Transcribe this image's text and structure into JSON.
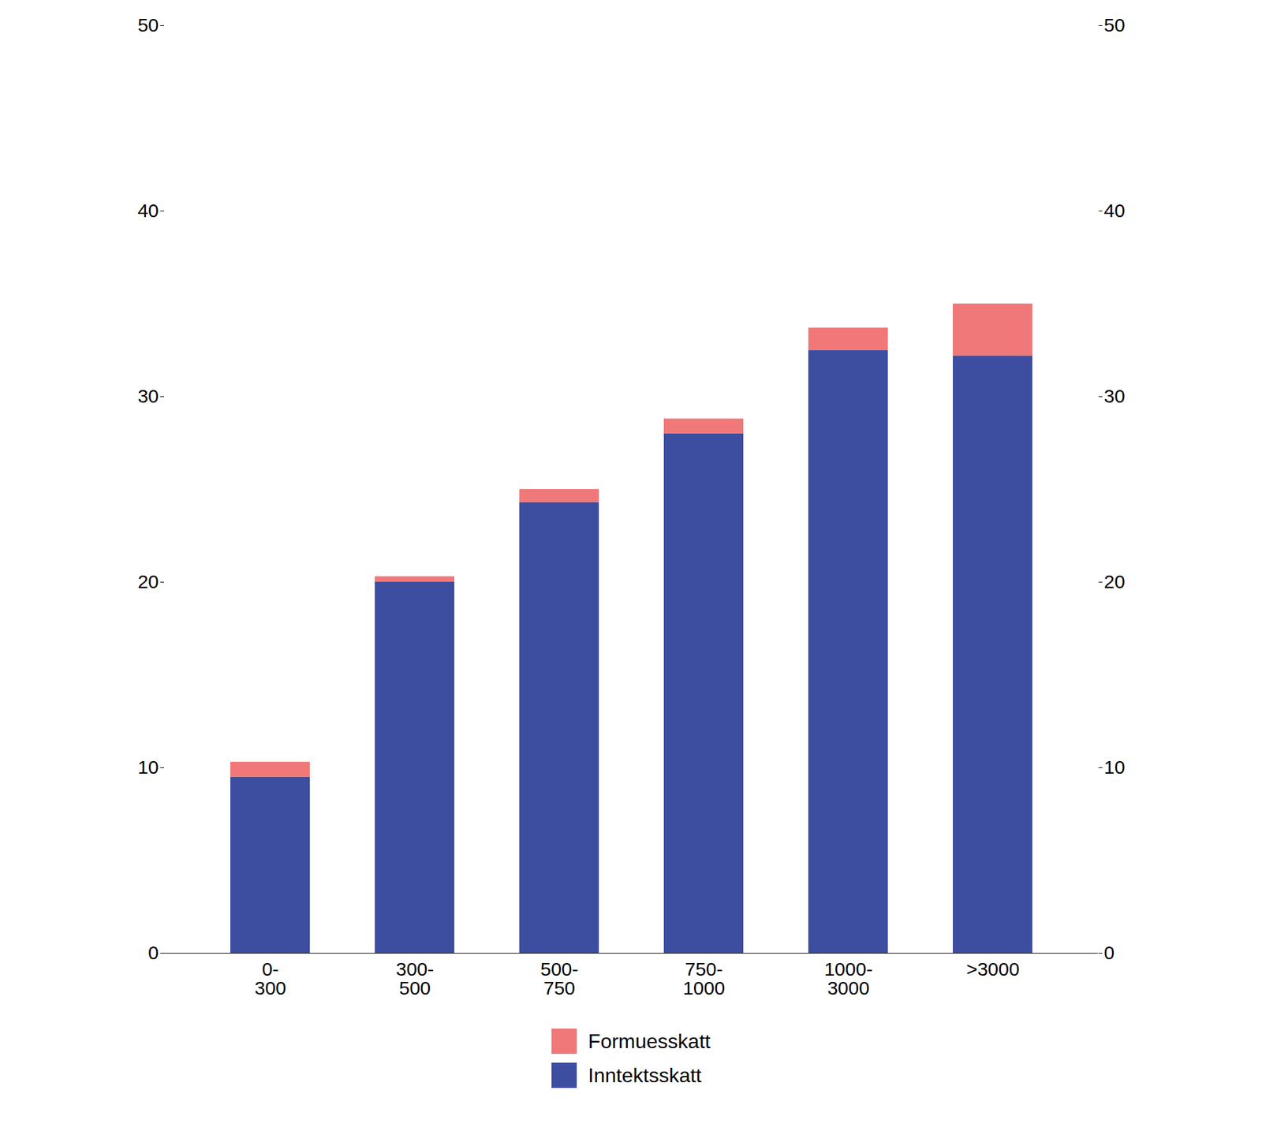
{
  "chart_data": {
    "type": "bar",
    "stacked": true,
    "categories": [
      "0-\n300",
      "300-\n500",
      "500-\n750",
      "750-\n1000",
      "1000-\n3000",
      ">3000"
    ],
    "series": [
      {
        "name": "Inntektsskatt",
        "color": "#3d4da0",
        "values": [
          9.5,
          20.0,
          24.3,
          28.0,
          32.5,
          32.2
        ]
      },
      {
        "name": "Formuesskatt",
        "color": "#f07878",
        "values": [
          0.8,
          0.3,
          0.7,
          0.8,
          1.2,
          2.8
        ]
      }
    ],
    "ylim": [
      0,
      50
    ],
    "yticks": [
      0,
      10,
      20,
      30,
      40,
      50
    ],
    "grid": false,
    "legend": "bottom"
  }
}
